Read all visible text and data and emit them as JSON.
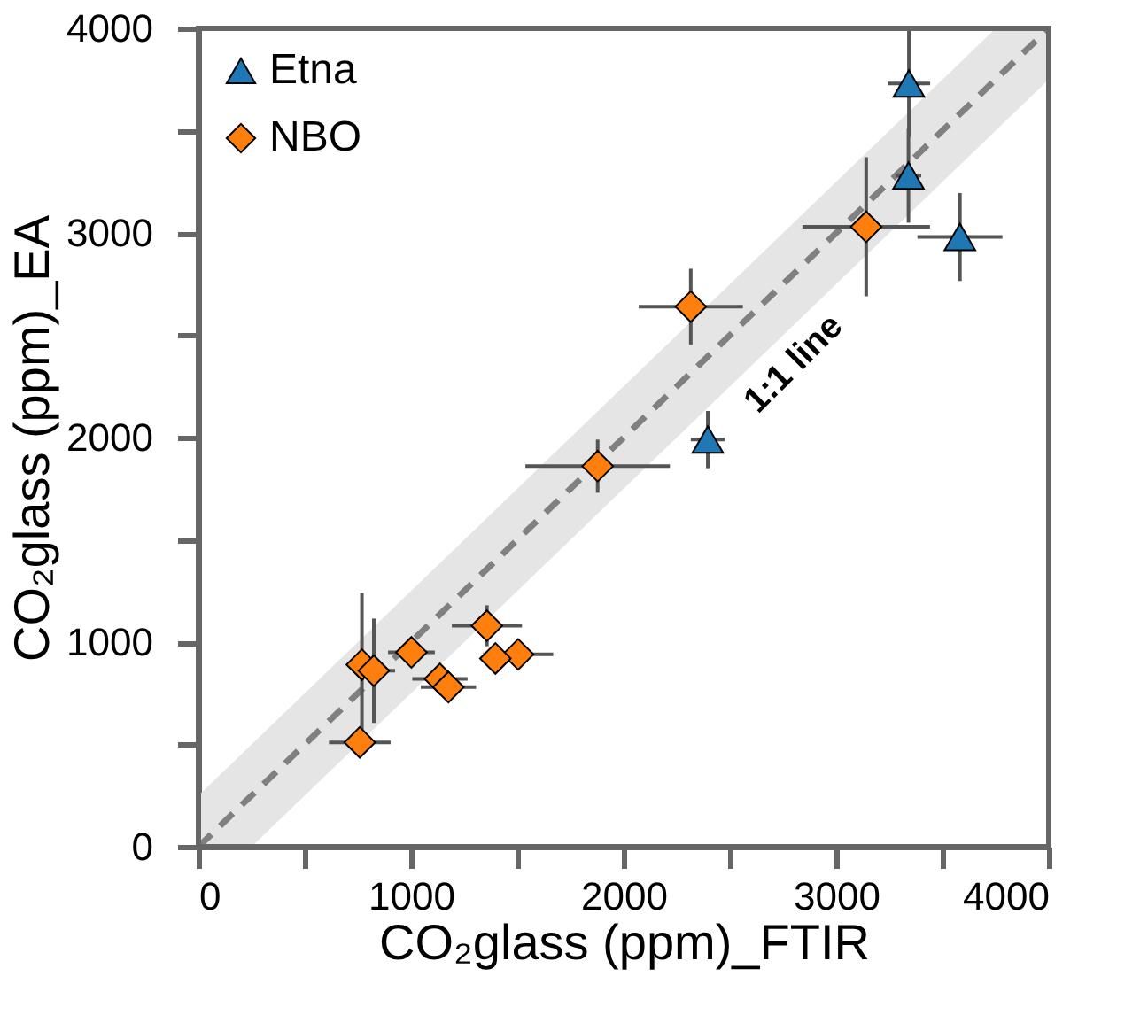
{
  "chart_data": {
    "type": "scatter",
    "xlabel": "CO₂glass (ppm)_FTIR",
    "ylabel": "CO₂glass (ppm)_EA",
    "xlim": [
      0,
      4000
    ],
    "ylim": [
      0,
      4000
    ],
    "xticks": [
      0,
      {
        "value": 500,
        "label": null
      },
      1000,
      {
        "value": 1500,
        "label": null
      },
      2000,
      {
        "value": 2500,
        "label": null
      },
      3000,
      {
        "value": 3500,
        "label": null
      },
      4000
    ],
    "yticks": [
      0,
      {
        "value": 500,
        "label": null
      },
      1000,
      {
        "value": 1500,
        "label": null
      },
      2000,
      {
        "value": 2500,
        "label": null
      },
      3000,
      {
        "value": 3500,
        "label": null
      },
      4000
    ],
    "grid": false,
    "legend": "top left",
    "annotations": [
      "1:1 line"
    ],
    "series": [
      {
        "type": "line",
        "line_style": "dashed",
        "marker": "none",
        "color": "#808080",
        "x": [
          0,
          250,
          3750,
          4000
        ],
        "values": [
          0,
          250,
          3750,
          4000
        ],
        "lower": [
          0,
          0,
          3500,
          3750
        ],
        "upper": [
          250,
          500,
          4000,
          4000
        ]
      },
      {
        "name": "Etna",
        "marker": "triangle",
        "color": "#1f77b4",
        "x": [
          3342,
          3340,
          3582,
          2396
        ],
        "values": [
          3730,
          3280,
          2980,
          1990
        ],
        "xerrors": [
          100,
          60,
          200,
          80
        ],
        "errors": [
          260,
          230,
          215,
          140
        ]
      },
      {
        "name": "NBO",
        "marker": "diamond",
        "color": "#ff7f0e",
        "x": [
          3141,
          2316,
          1878,
          1357,
          1002,
          1504,
          1397,
          769,
          825,
          1136,
          1176,
          759
        ],
        "values": [
          3030,
          2640,
          1860,
          1080,
          950,
          940,
          920,
          890,
          860,
          820,
          780,
          510
        ],
        "xerrors": [
          300,
          245,
          340,
          165,
          110,
          165,
          60,
          60,
          100,
          130,
          130,
          145
        ],
        "errors": [
          340,
          185,
          130,
          100,
          60,
          60,
          60,
          350,
          255,
          60,
          60,
          60
        ]
      }
    ]
  }
}
